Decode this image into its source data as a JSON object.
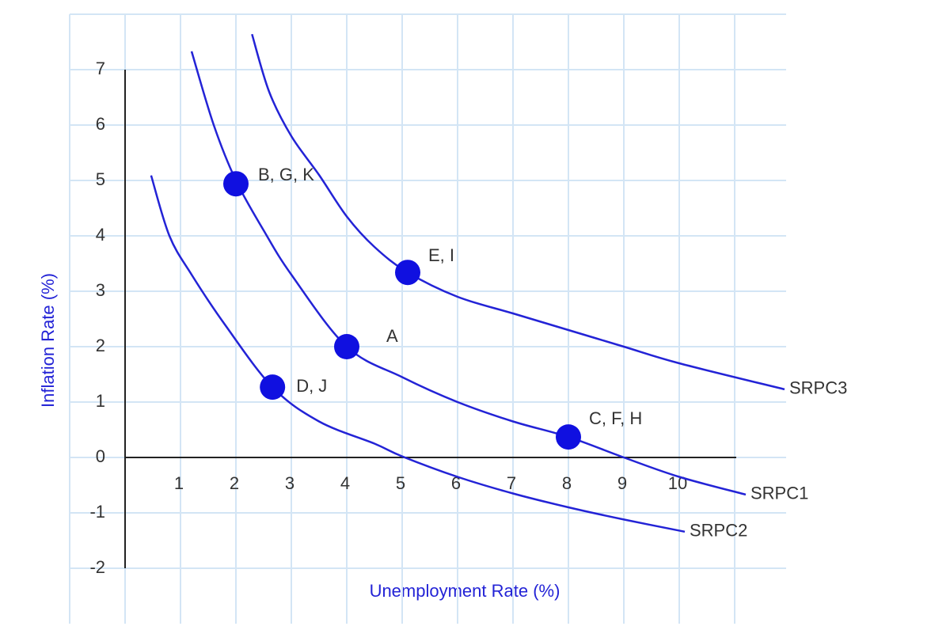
{
  "chart_data": {
    "type": "line",
    "x_label": "Unemployment Rate (%)",
    "y_label": "Inflation Rate (%)",
    "xlim": [
      -1,
      12
    ],
    "ylim": [
      -3,
      8
    ],
    "xticks": [
      1,
      2,
      3,
      4,
      5,
      6,
      7,
      8,
      9,
      10
    ],
    "yticks": [
      -2,
      -1,
      0,
      1,
      2,
      3,
      4,
      5,
      6,
      7
    ],
    "grid": true,
    "series": [
      {
        "name": "SRPC1",
        "color": "#2323d6",
        "x": [
          1.2,
          1.6,
          2,
          2.5,
          3,
          4,
          5,
          6,
          7,
          8,
          9,
          10,
          11.2
        ],
        "values": [
          7.33,
          6.0,
          5.0,
          4.1,
          3.3,
          2.0,
          1.45,
          1.0,
          0.65,
          0.37,
          0,
          -0.35,
          -0.67
        ]
      },
      {
        "name": "SRPC2",
        "color": "#2323d6",
        "x": [
          0.47,
          0.8,
          1.2,
          1.8,
          2.66,
          3.5,
          4.5,
          5,
          6,
          7,
          8,
          9,
          10.1
        ],
        "values": [
          5.09,
          4.0,
          3.3,
          2.4,
          1.27,
          0.65,
          0.25,
          0.02,
          -0.35,
          -0.65,
          -0.9,
          -1.12,
          -1.34
        ]
      },
      {
        "name": "SRPC3",
        "color": "#2323d6",
        "x": [
          2.29,
          2.6,
          3,
          3.5,
          4,
          4.5,
          5.1,
          6,
          7,
          8,
          9,
          10,
          11.9
        ],
        "values": [
          7.64,
          6.6,
          5.8,
          5.1,
          4.35,
          3.8,
          3.34,
          2.9,
          2.6,
          2.3,
          2.0,
          1.7,
          1.23
        ]
      }
    ],
    "points": {
      "color": "#1010e0",
      "labels": [
        "B, G, K",
        "E, I",
        "A",
        "D, J",
        "C, F, H"
      ],
      "x": [
        2,
        5.1,
        4,
        2.66,
        8
      ],
      "values": [
        4.94,
        3.34,
        2,
        1.27,
        0.37
      ]
    }
  }
}
